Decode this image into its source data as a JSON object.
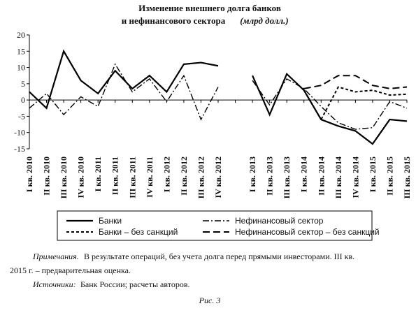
{
  "chart_data": {
    "type": "line",
    "title": "Изменение внешнего долга банков",
    "title_line2": "и нефинансового сектора",
    "unit": "(млрд долл.)",
    "categories": [
      "I кв. 2010",
      "II кв. 2010",
      "III кв. 2010",
      "IV кв. 2010",
      "I кв. 2011",
      "II кв. 2011",
      "III кв. 2011",
      "IV кв. 2011",
      "I кв. 2012",
      "II кв. 2012",
      "III кв. 2012",
      "IV кв. 2012",
      null,
      "I кв. 2013",
      "II кв. 2013",
      "III кв. 2013",
      "I кв. 2014",
      "II кв. 2014",
      "III кв. 2014",
      "IV кв. 2014",
      "I кв. 2015",
      "II кв. 2015",
      "III кв. 2015"
    ],
    "series": [
      {
        "name": "Банки",
        "color": "#000000",
        "dash": "none",
        "width": 2.2,
        "values": [
          2.5,
          -2.5,
          15,
          6,
          2,
          9,
          3.5,
          7.5,
          2.5,
          11,
          11.5,
          10.5,
          null,
          7.5,
          -4.5,
          8,
          3,
          -6,
          -8,
          -9.5,
          -13.5,
          -6,
          -6.5
        ]
      },
      {
        "name": "Нефинансовый сектор",
        "color": "#000000",
        "dash": "9 3 2 3",
        "width": 1.4,
        "values": [
          -2.5,
          2,
          -4.5,
          1,
          -2,
          11,
          2.5,
          6.5,
          -0.5,
          7.5,
          -6,
          4,
          null,
          6,
          -1.5,
          6.5,
          3.5,
          -2,
          -7,
          -9,
          -8.5,
          -0.5,
          -2.5
        ]
      },
      {
        "name": "Банки – без санкций",
        "color": "#000000",
        "dash": "4 3",
        "width": 2,
        "values": [
          null,
          null,
          null,
          null,
          null,
          null,
          null,
          null,
          null,
          null,
          null,
          null,
          null,
          null,
          null,
          null,
          3,
          -6,
          4,
          2.5,
          3,
          1.5,
          1.8
        ]
      },
      {
        "name": "Нефинансовый сектор – без санкций",
        "color": "#000000",
        "dash": "10 5",
        "width": 2,
        "values": [
          null,
          null,
          null,
          null,
          null,
          null,
          null,
          null,
          null,
          null,
          null,
          null,
          null,
          null,
          null,
          null,
          3.5,
          4.5,
          7.5,
          7.5,
          4.5,
          3.5,
          4
        ]
      }
    ],
    "ylim": [
      -15,
      20
    ],
    "yticks": [
      -15,
      -10,
      -5,
      0,
      5,
      10,
      15,
      20
    ]
  },
  "notes": {
    "note_label": "Примечания.",
    "note": "В результате операций, без учета долга перед прямыми инвесторами. III кв.",
    "note_cont": "2015 г. – предварительная оценка.",
    "source_label": "Источники:",
    "source": "Банк России; расчеты авторов.",
    "caption": "Рис. 3"
  }
}
